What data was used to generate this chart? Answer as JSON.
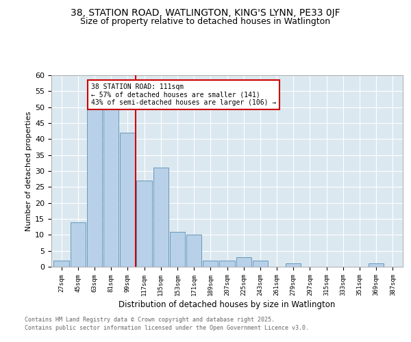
{
  "title_line1": "38, STATION ROAD, WATLINGTON, KING'S LYNN, PE33 0JF",
  "title_line2": "Size of property relative to detached houses in Watlington",
  "xlabel": "Distribution of detached houses by size in Watlington",
  "ylabel": "Number of detached properties",
  "footnote_line1": "Contains HM Land Registry data © Crown copyright and database right 2025.",
  "footnote_line2": "Contains public sector information licensed under the Open Government Licence v3.0.",
  "bar_labels": [
    "27sqm",
    "45sqm",
    "63sqm",
    "81sqm",
    "99sqm",
    "117sqm",
    "135sqm",
    "153sqm",
    "171sqm",
    "189sqm",
    "207sqm",
    "225sqm",
    "243sqm",
    "261sqm",
    "279sqm",
    "297sqm",
    "315sqm",
    "333sqm",
    "351sqm",
    "369sqm",
    "387sqm"
  ],
  "bar_values": [
    2,
    14,
    50,
    50,
    42,
    27,
    31,
    11,
    10,
    2,
    2,
    3,
    2,
    0,
    1,
    0,
    0,
    0,
    0,
    1,
    0
  ],
  "bar_color": "#b8d0e8",
  "bar_edge_color": "#6699bb",
  "annotation_box_text": "38 STATION ROAD: 111sqm\n← 57% of detached houses are smaller (141)\n43% of semi-detached houses are larger (106) →",
  "vline_x": 4.5,
  "vline_color": "#cc0000",
  "ylim": [
    0,
    60
  ],
  "yticks": [
    0,
    5,
    10,
    15,
    20,
    25,
    30,
    35,
    40,
    45,
    50,
    55,
    60
  ],
  "background_color": "#ffffff",
  "plot_bg_color": "#dce8f0",
  "grid_color": "#ffffff",
  "title_fontsize": 10,
  "subtitle_fontsize": 9
}
